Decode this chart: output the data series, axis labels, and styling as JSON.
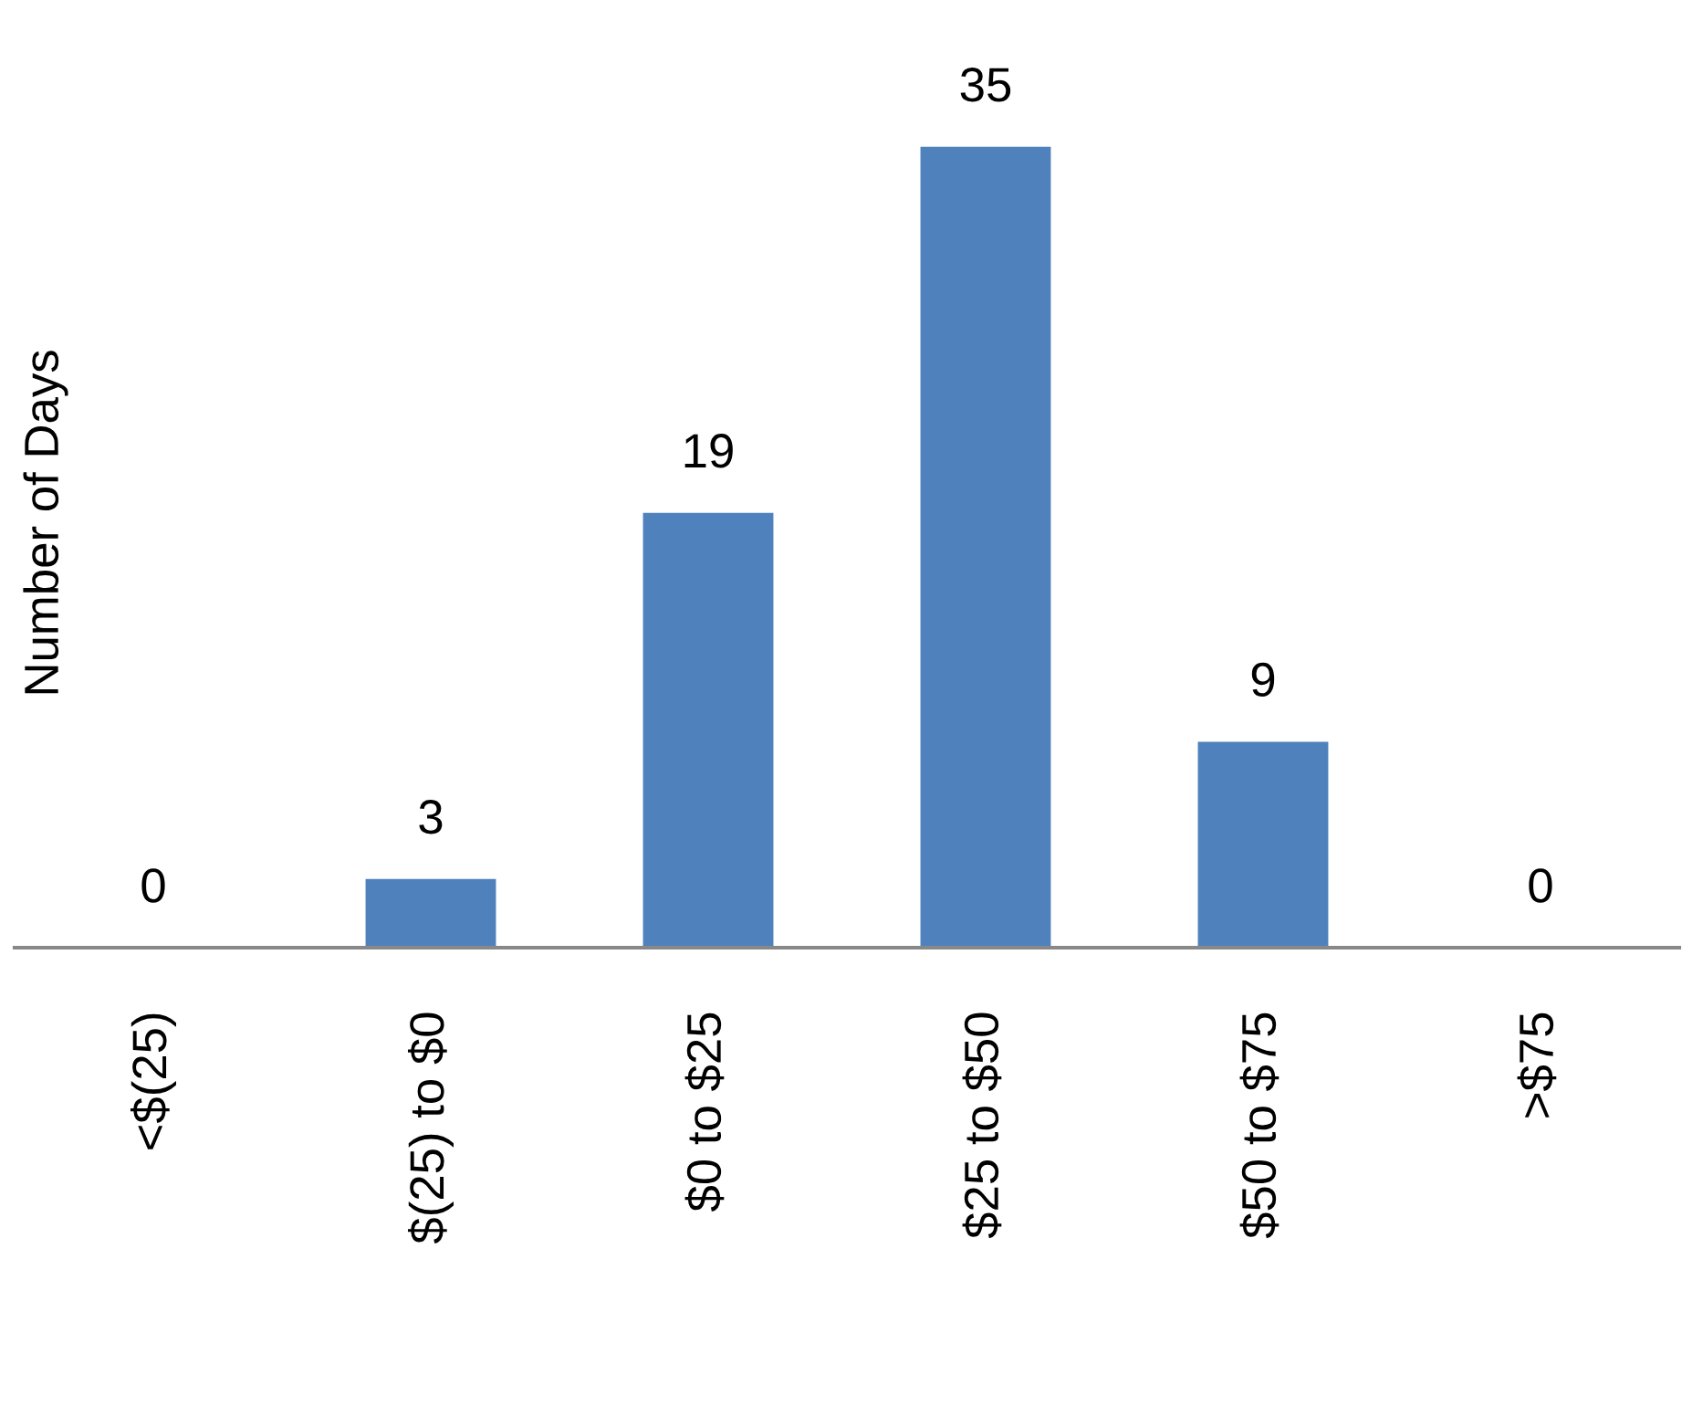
{
  "chart_data": {
    "type": "bar",
    "ylabel": "Number of Days",
    "categories": [
      "<$(25)",
      "$(25) to $0",
      "$0 to $25",
      "$25 to $50",
      "$50 to $75",
      ">$75"
    ],
    "values": [
      0,
      3,
      19,
      35,
      9,
      0
    ],
    "color": "#4f81bd",
    "data_labels": true,
    "grid": false,
    "tick_labels": "x"
  }
}
